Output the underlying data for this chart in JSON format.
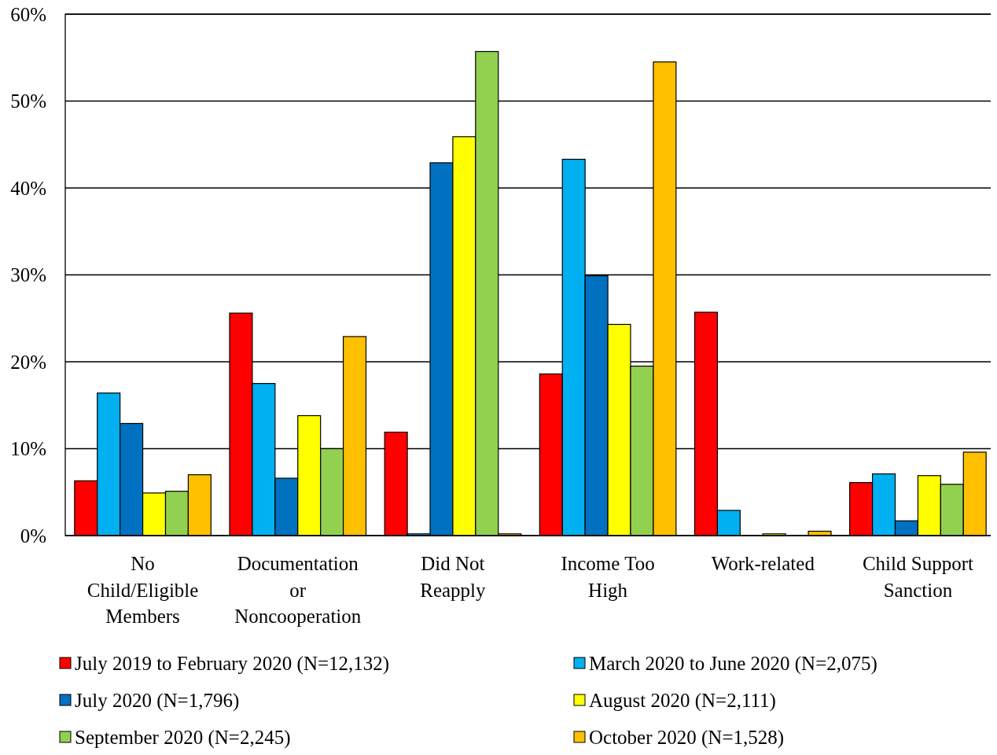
{
  "chart_data": {
    "type": "bar",
    "categories": [
      "No Child/Eligible Members",
      "Documentation or Noncooperation",
      "Did Not Reapply",
      "Income Too High",
      "Work-related",
      "Child Support Sanction"
    ],
    "series": [
      {
        "name": "July 2019 to February 2020 (N=12,132)",
        "color": "#ff0000",
        "values": [
          6.3,
          25.6,
          11.9,
          18.6,
          25.7,
          6.1
        ]
      },
      {
        "name": "March 2020 to June 2020 (N=2,075)",
        "color": "#00b0f0",
        "values": [
          16.4,
          17.5,
          0.2,
          43.3,
          2.9,
          7.1
        ]
      },
      {
        "name": "July 2020 (N=1,796)",
        "color": "#0070c0",
        "values": [
          12.9,
          6.6,
          42.9,
          29.9,
          null,
          1.7
        ]
      },
      {
        "name": "August 2020 (N=2,111)",
        "color": "#ffff00",
        "values": [
          4.9,
          13.8,
          45.9,
          24.3,
          0.2,
          6.9
        ]
      },
      {
        "name": "September 2020 (N=2,245)",
        "color": "#92d050",
        "values": [
          5.1,
          10.0,
          55.7,
          19.5,
          null,
          5.9
        ]
      },
      {
        "name": "October 2020 (N=1,528)",
        "color": "#ffc000",
        "values": [
          7.0,
          22.9,
          0.2,
          54.5,
          0.5,
          9.6
        ]
      }
    ],
    "ylim": [
      0,
      60
    ],
    "yticks": [
      {
        "value": 0,
        "label": "0%"
      },
      {
        "value": 10,
        "label": "10%"
      },
      {
        "value": 20,
        "label": "20%"
      },
      {
        "value": 30,
        "label": "30%"
      },
      {
        "value": 40,
        "label": "40%"
      },
      {
        "value": 50,
        "label": "50%"
      },
      {
        "value": 60,
        "label": "60%"
      }
    ],
    "grid": "y",
    "legend": "bottom"
  }
}
